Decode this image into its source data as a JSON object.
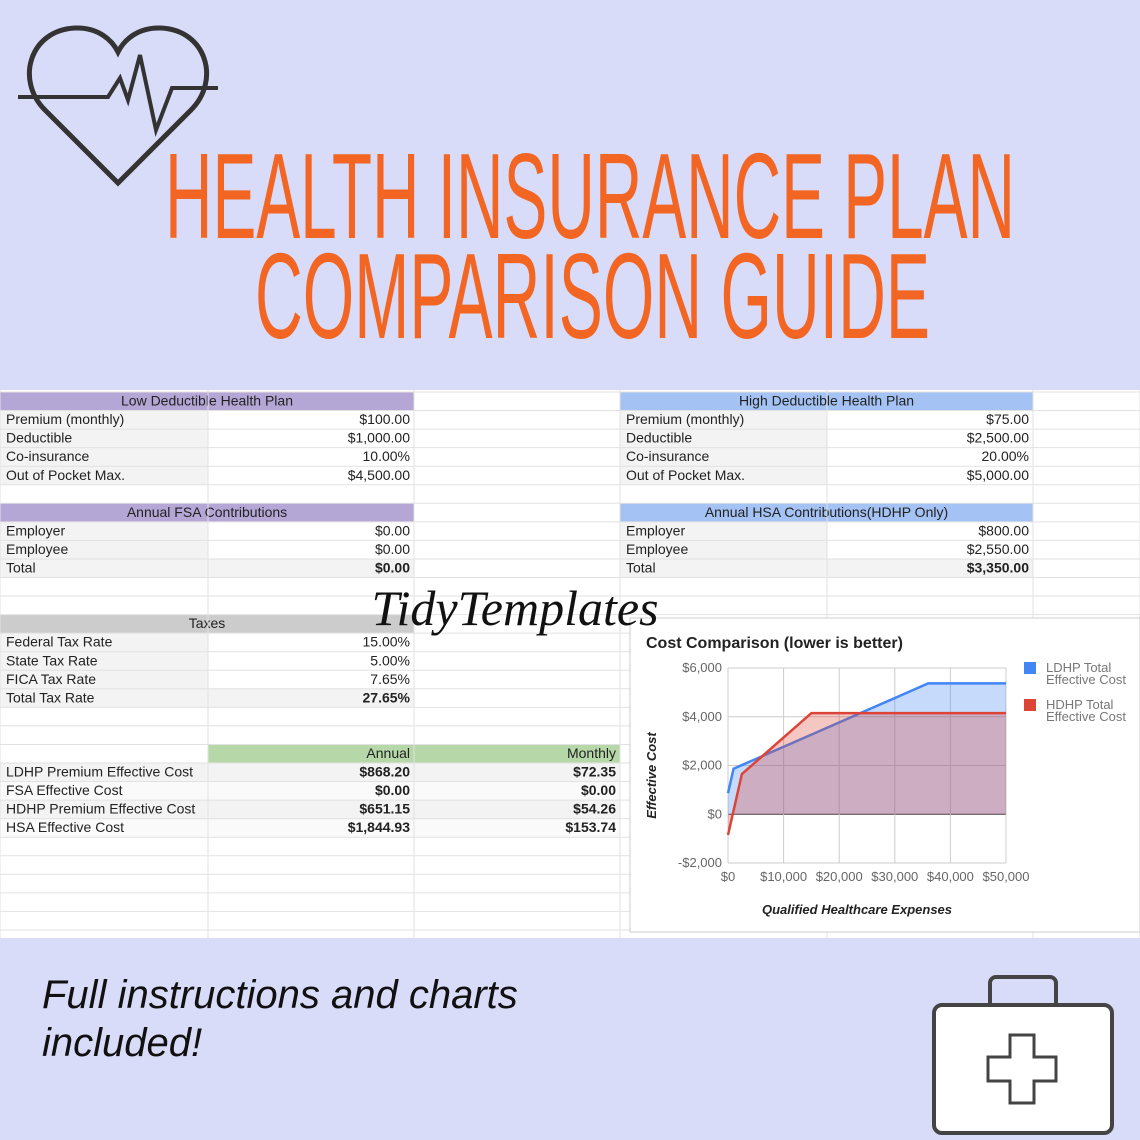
{
  "header": {
    "lines": [
      "HEALTH INSURANCE PLAN",
      "COMPARISON GUIDE"
    ]
  },
  "tables": [
    {
      "title": "Low Deductible Health Plan",
      "color": "#b4a7d6",
      "rows": [
        [
          "Premium (monthly)",
          "$100.00"
        ],
        [
          "Deductible",
          "$1,000.00"
        ],
        [
          "Co-insurance",
          "10.00%"
        ],
        [
          "Out of Pocket Max.",
          "$4,500.00"
        ]
      ]
    },
    {
      "title": "High Deductible Health Plan",
      "color": "#a4c2f4",
      "rows": [
        [
          "Premium (monthly)",
          "$75.00"
        ],
        [
          "Deductible",
          "$2,500.00"
        ],
        [
          "Co-insurance",
          "20.00%"
        ],
        [
          "Out of Pocket Max.",
          "$5,000.00"
        ]
      ]
    },
    {
      "title": "Annual FSA Contributions",
      "color": "#b4a7d6",
      "rows": [
        [
          "Employer",
          "$0.00"
        ],
        [
          "Employee",
          "$0.00"
        ],
        [
          "Total",
          "$0.00"
        ]
      ]
    },
    {
      "title": "Annual HSA Contributions(HDHP Only)",
      "color": "#a4c2f4",
      "rows": [
        [
          "Employer",
          "$800.00"
        ],
        [
          "Employee",
          "$2,550.00"
        ],
        [
          "Total",
          "$3,350.00"
        ]
      ]
    },
    {
      "title": "Taxes",
      "color": "#cccccc",
      "rows": [
        [
          "Federal Tax Rate",
          "15.00%"
        ],
        [
          "State Tax Rate",
          "5.00%"
        ],
        [
          "FICA Tax Rate",
          "7.65%"
        ],
        [
          "Total Tax Rate",
          "27.65%"
        ]
      ]
    }
  ],
  "summary": {
    "color": "#b6d7a8",
    "columns": [
      "Annual",
      "Monthly"
    ],
    "rows": [
      [
        "LDHP Premium Effective Cost",
        "$868.20",
        "$72.35"
      ],
      [
        "FSA Effective Cost",
        "$0.00",
        "$0.00"
      ],
      [
        "HDHP Premium Effective Cost",
        "$651.15",
        "$54.26"
      ],
      [
        "HSA Effective Cost",
        "$1,844.93",
        "$153.74"
      ]
    ]
  },
  "watermark": "TidyTemplates",
  "chart_data": {
    "type": "area",
    "title": "Cost Comparison (lower is better)",
    "x_label": "Qualified Healthcare Expenses",
    "y_label": "Effective Cost",
    "x": [
      0,
      1000,
      2500,
      15000,
      36000,
      50000
    ],
    "series": [
      {
        "name": "LDHP Total Effective Cost",
        "color": "#4285f4",
        "values": [
          868,
          1868,
          2018,
          3268,
          5368,
          5368
        ]
      },
      {
        "name": "HDHP Total Effective Cost",
        "color": "#db4437",
        "values": [
          -850,
          150,
          1650,
          4150,
          4150,
          4150
        ]
      }
    ],
    "xlim": [
      0,
      50000
    ],
    "xticks": [
      {
        "value": 0,
        "label": "$0"
      },
      {
        "value": 10000,
        "label": "$10,000"
      },
      {
        "value": 20000,
        "label": "$20,000"
      },
      {
        "value": 30000,
        "label": "$30,000"
      },
      {
        "value": 40000,
        "label": "$40,000"
      },
      {
        "value": 50000,
        "label": "$50,000"
      }
    ],
    "ylim": [
      -2000,
      6000
    ],
    "yticks": [
      {
        "value": -2000,
        "label": "-$2,000"
      },
      {
        "value": 0,
        "label": "$0"
      },
      {
        "value": 2000,
        "label": "$2,000"
      },
      {
        "value": 4000,
        "label": "$4,000"
      },
      {
        "value": 6000,
        "label": "$6,000"
      }
    ],
    "grid": true,
    "legend": "right"
  },
  "footer": {
    "lines": [
      "Full instructions and charts",
      "included!"
    ]
  }
}
